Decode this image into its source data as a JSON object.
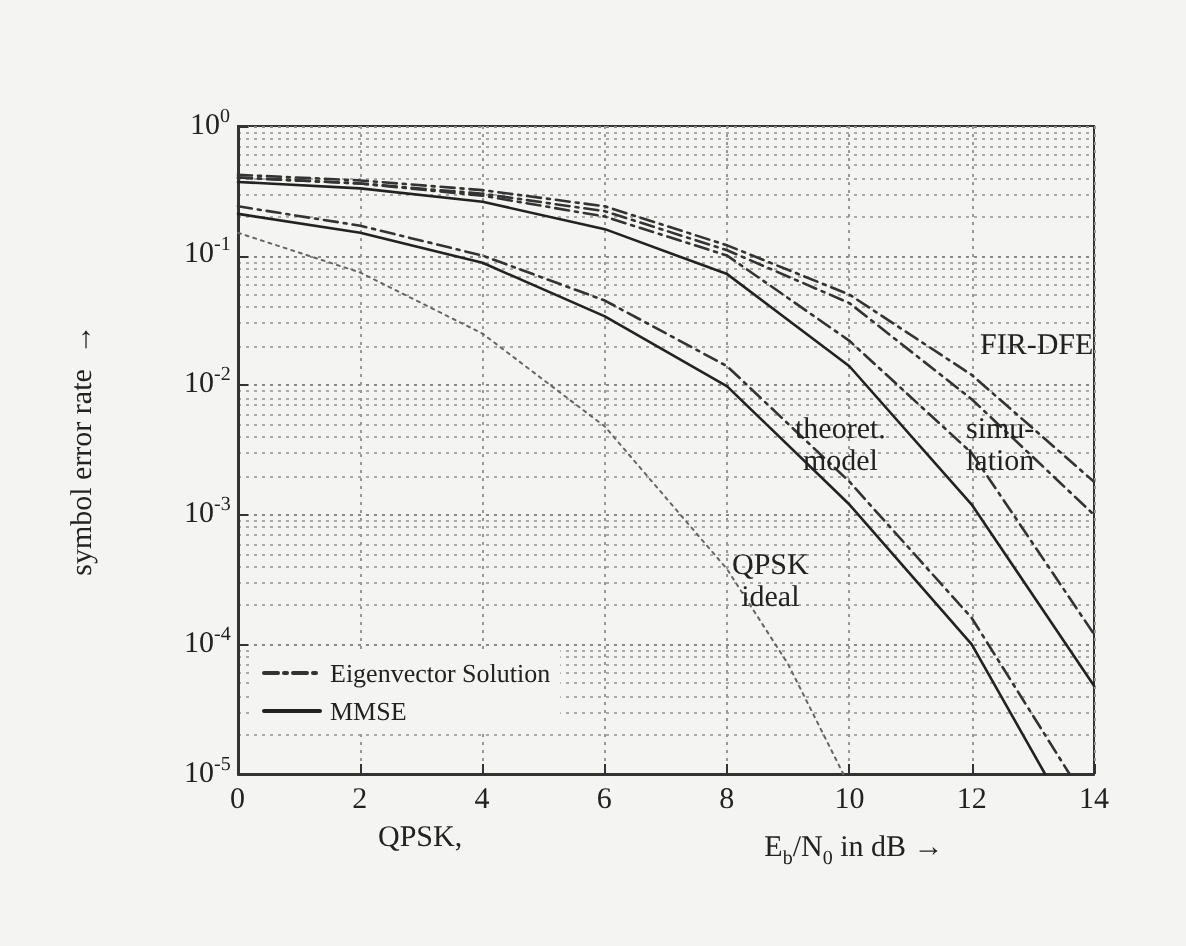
{
  "chart_data": {
    "type": "line",
    "xlabel": "E$_{b}$/N$_{0}$  in dB  →",
    "ylabel": "symbol error rate  →",
    "log": "y",
    "grid": true,
    "legend": "bottom left",
    "marker": "none",
    "xlim": [
      0,
      14
    ],
    "xticks": [
      0,
      2,
      4,
      6,
      8,
      10,
      12,
      14
    ],
    "ylim": [
      1e-05,
      1
    ],
    "yticks": [
      {
        "value": 1,
        "label": "10$^{0}$"
      },
      {
        "value": 0.1,
        "label": "10$^{-1}$"
      },
      {
        "value": 0.01,
        "label": "10$^{-2}$"
      },
      {
        "value": 0.001,
        "label": "10$^{-3}$"
      },
      {
        "value": 0.0001,
        "label": "10$^{-4}$"
      },
      {
        "value": 1e-05,
        "label": "10$^{-5}$"
      }
    ],
    "series": [
      {
        "color": "#333333",
        "line_style": "dashed",
        "x": [
          0,
          2,
          4,
          6,
          8,
          10,
          12,
          14
        ],
        "values": [
          0.42,
          0.38,
          0.32,
          0.24,
          0.12,
          0.05,
          0.012,
          0.0018
        ]
      },
      {
        "color": "#333333",
        "line_style": "dashed",
        "x": [
          0,
          2,
          4,
          6,
          8,
          10,
          12,
          14
        ],
        "values": [
          0.4,
          0.36,
          0.3,
          0.22,
          0.11,
          0.043,
          0.0078,
          0.001
        ]
      },
      {
        "name": "Eigenvector Solution",
        "color": "#333333",
        "line_style": "dashed",
        "x": [
          0,
          2,
          4,
          6,
          8,
          10,
          12,
          14
        ],
        "values": [
          0.4,
          0.36,
          0.29,
          0.2,
          0.1,
          0.022,
          0.003,
          0.00012
        ]
      },
      {
        "name": "MMSE",
        "color": "#222222",
        "line_style": "solid",
        "x": [
          0,
          2,
          4,
          6,
          8,
          10,
          12,
          14
        ],
        "values": [
          0.37,
          0.33,
          0.26,
          0.16,
          0.072,
          0.014,
          0.0012,
          4.8e-05
        ]
      },
      {
        "color": "#333333",
        "line_style": "dashed",
        "x": [
          0,
          2,
          4,
          6,
          8,
          10,
          12,
          13.6
        ],
        "values": [
          0.24,
          0.17,
          0.1,
          0.045,
          0.014,
          0.0018,
          0.00016,
          1e-05
        ]
      },
      {
        "color": "#222222",
        "line_style": "solid",
        "x": [
          0,
          2,
          4,
          6,
          8,
          10,
          12,
          13.2
        ],
        "values": [
          0.21,
          0.15,
          0.088,
          0.034,
          0.0098,
          0.0012,
          0.0001,
          1e-05
        ]
      },
      {
        "color": "#666666",
        "line_style": "dotted",
        "x": [
          0,
          2,
          4,
          6,
          8,
          9,
          9.9
        ],
        "values": [
          0.15,
          0.074,
          0.025,
          0.0048,
          0.00038,
          7e-05,
          1e-05
        ]
      }
    ],
    "annotations": [
      "FIR-DFE",
      "theoret.\nmodel",
      "simu-\nlation",
      "QPSK\nideal",
      "QPSK,"
    ]
  }
}
